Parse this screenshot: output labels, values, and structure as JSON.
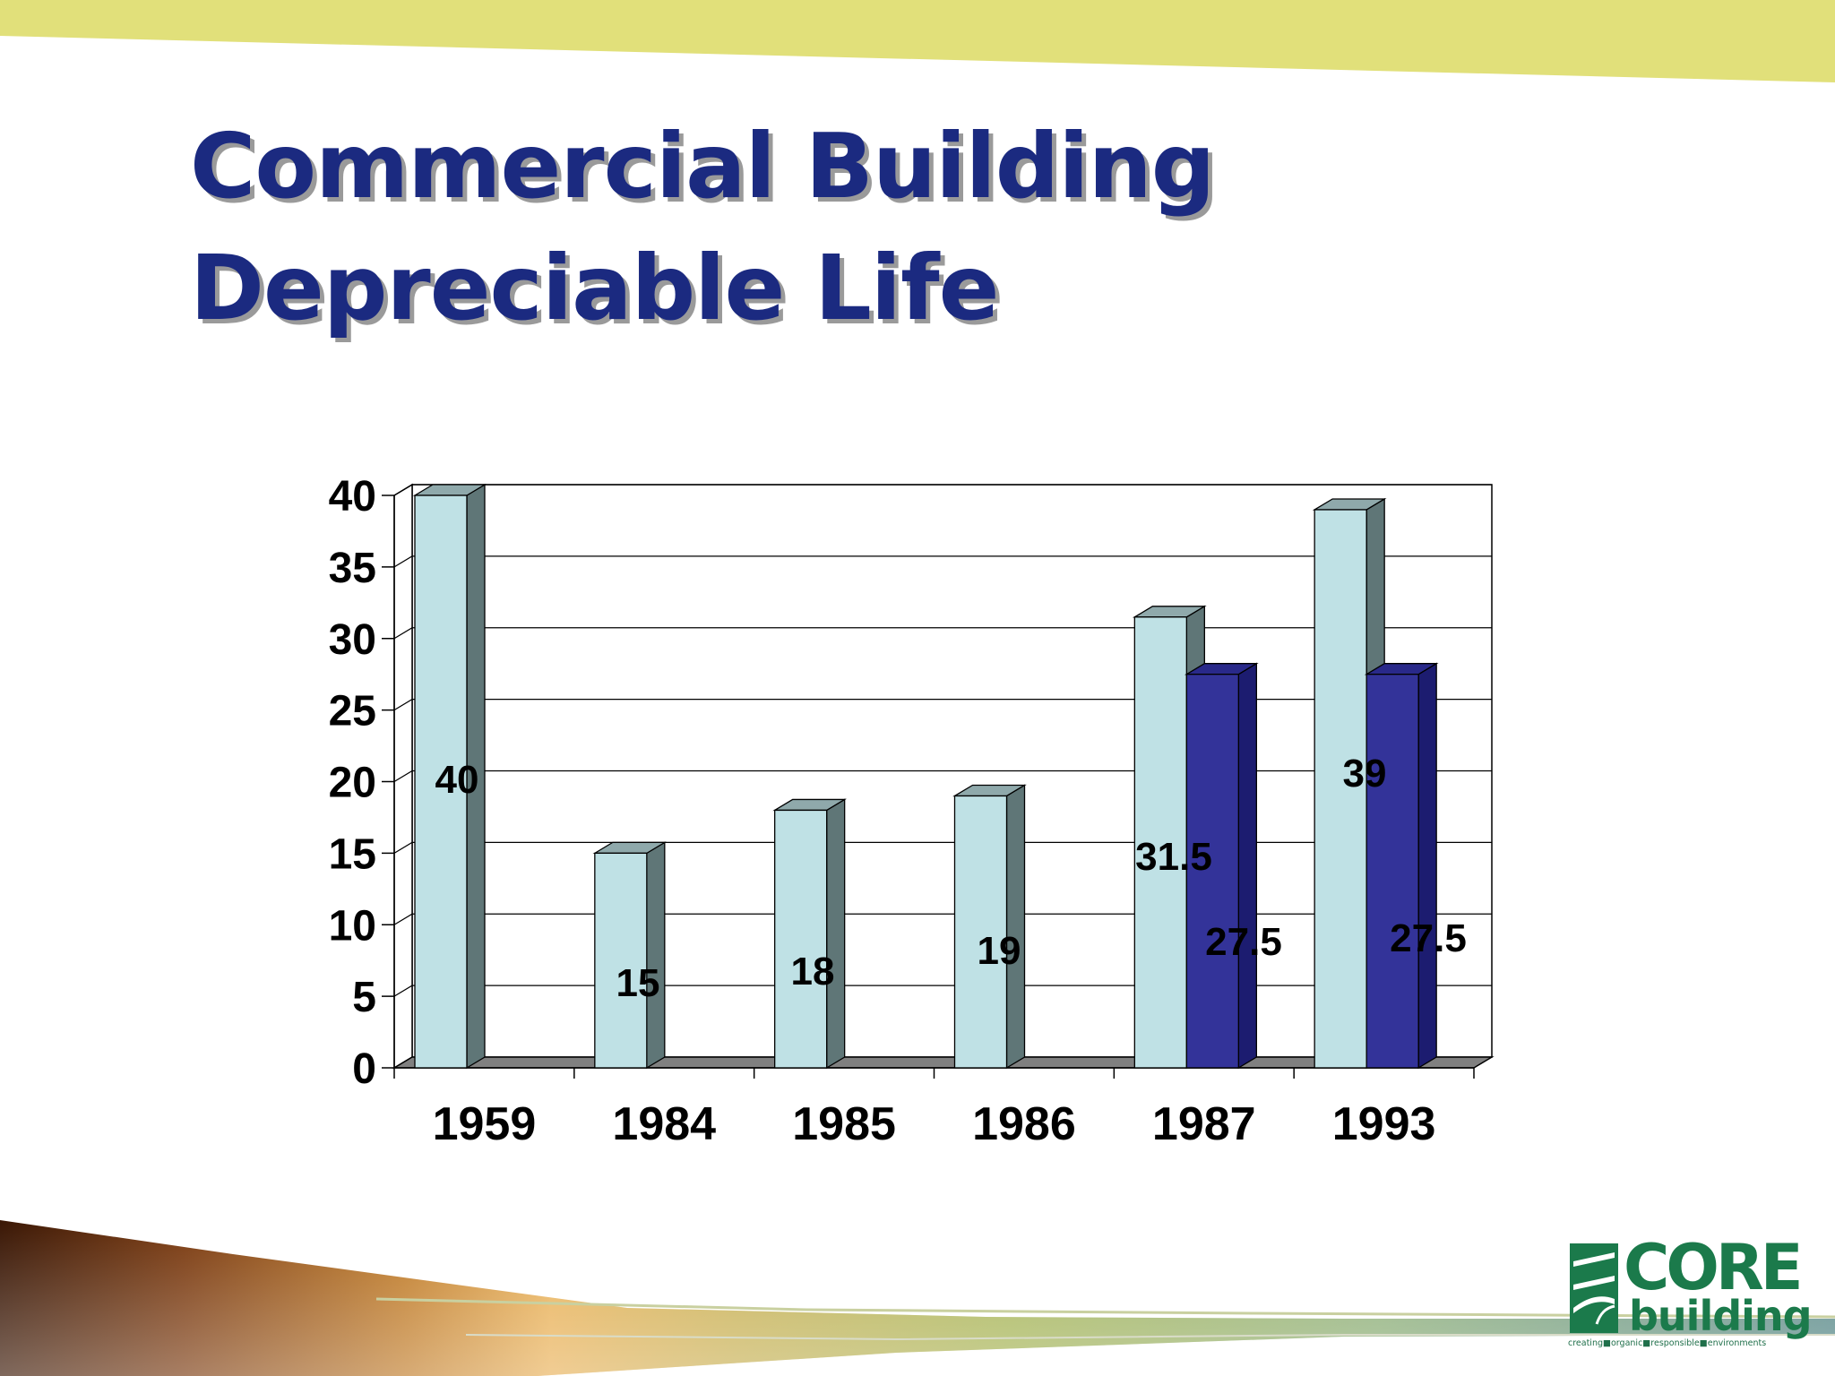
{
  "title": {
    "line1": "Commercial Building",
    "line2": "Depreciable Life"
  },
  "colors": {
    "title": "#1b2a80",
    "band": "#e1e07a",
    "bar_light": "#bfe1e5",
    "bar_dark": "#333399",
    "logo_green": "#1b7a4b"
  },
  "chart_data": {
    "type": "bar",
    "style": "3d-clustered-column",
    "categories": [
      "1959",
      "1984",
      "1985",
      "1986",
      "1987",
      "1993"
    ],
    "series": [
      {
        "values": [
          40,
          15,
          18,
          19,
          31.5,
          39
        ],
        "labels": [
          "40",
          "15",
          "18",
          "19",
          "31.5",
          "39"
        ],
        "color": "#bfe1e5"
      },
      {
        "values": [
          null,
          null,
          null,
          null,
          27.5,
          27.5
        ],
        "labels": [
          "",
          "",
          "",
          "",
          "27.5",
          "27.5"
        ],
        "color": "#333399"
      }
    ],
    "ylim": [
      0,
      40
    ],
    "yticks": [
      "0",
      "5",
      "10",
      "15",
      "20",
      "25",
      "30",
      "35",
      "40"
    ],
    "grid": true,
    "legend": "none"
  },
  "logo": {
    "core": "CORE",
    "building": "building",
    "tagline_words": [
      "creating",
      "organic",
      "responsible",
      "environments"
    ]
  }
}
